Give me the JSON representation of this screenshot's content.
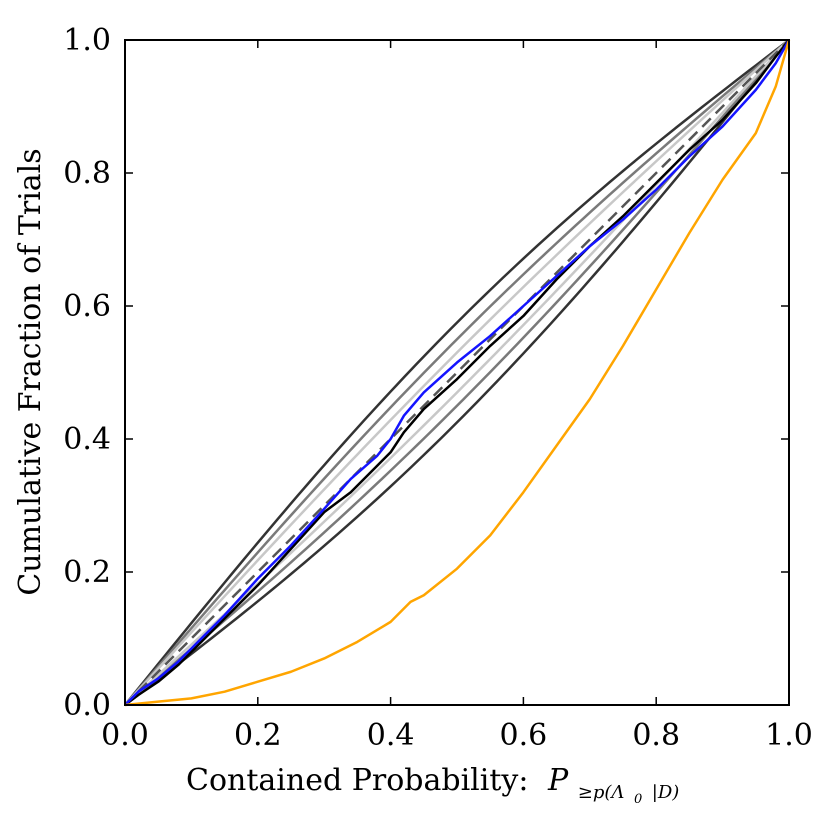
{
  "chart_data": {
    "type": "line",
    "title": "",
    "xlabel": "Contained Probability:",
    "xlabel_math": {
      "main": "P",
      "subscript": "≥p(Λ",
      "subsub": "0",
      "subscript_end": "|D)"
    },
    "ylabel": "Cumulative Fraction of Trials",
    "xlim": [
      0.0,
      1.0
    ],
    "ylim": [
      0.0,
      1.0
    ],
    "xticks": [
      "0.0",
      "0.2",
      "0.4",
      "0.6",
      "0.8",
      "1.0"
    ],
    "yticks": [
      "0.0",
      "0.2",
      "0.4",
      "0.6",
      "0.8",
      "1.0"
    ],
    "grid": false,
    "reference": {
      "name": "diagonal",
      "color": "#555555",
      "style": "dashed",
      "points": [
        [
          0,
          0
        ],
        [
          1,
          1
        ]
      ]
    },
    "bands": [
      {
        "name": "band-1sigma",
        "color": "#c8c8c8",
        "offset": 0.03
      },
      {
        "name": "band-2sigma",
        "color": "#7a7a7a",
        "offset": 0.05
      },
      {
        "name": "band-3sigma",
        "color": "#333333",
        "offset": 0.075
      }
    ],
    "series": [
      {
        "name": "black-trials",
        "color": "#000000",
        "x": [
          0,
          0.02,
          0.05,
          0.08,
          0.1,
          0.15,
          0.2,
          0.25,
          0.3,
          0.34,
          0.38,
          0.4,
          0.42,
          0.45,
          0.5,
          0.55,
          0.6,
          0.65,
          0.7,
          0.75,
          0.8,
          0.85,
          0.9,
          0.95,
          0.98,
          1.0
        ],
        "y": [
          0,
          0.015,
          0.035,
          0.06,
          0.08,
          0.13,
          0.18,
          0.235,
          0.29,
          0.32,
          0.36,
          0.38,
          0.41,
          0.445,
          0.49,
          0.54,
          0.585,
          0.64,
          0.69,
          0.735,
          0.785,
          0.835,
          0.88,
          0.935,
          0.975,
          1.0
        ]
      },
      {
        "name": "blue-trials",
        "color": "#1414ff",
        "x": [
          0,
          0.02,
          0.05,
          0.08,
          0.1,
          0.15,
          0.2,
          0.25,
          0.3,
          0.34,
          0.38,
          0.4,
          0.42,
          0.45,
          0.5,
          0.55,
          0.6,
          0.65,
          0.7,
          0.75,
          0.8,
          0.85,
          0.9,
          0.95,
          0.98,
          1.0
        ],
        "y": [
          0,
          0.02,
          0.04,
          0.065,
          0.085,
          0.135,
          0.19,
          0.24,
          0.295,
          0.34,
          0.375,
          0.4,
          0.435,
          0.47,
          0.515,
          0.555,
          0.6,
          0.645,
          0.69,
          0.73,
          0.775,
          0.825,
          0.87,
          0.925,
          0.965,
          1.0
        ]
      },
      {
        "name": "orange-trials",
        "color": "#ffa500",
        "x": [
          0,
          0.05,
          0.1,
          0.15,
          0.2,
          0.25,
          0.3,
          0.35,
          0.4,
          0.43,
          0.45,
          0.5,
          0.55,
          0.6,
          0.65,
          0.7,
          0.75,
          0.8,
          0.85,
          0.9,
          0.95,
          0.98,
          1.0
        ],
        "y": [
          0,
          0.005,
          0.01,
          0.02,
          0.035,
          0.05,
          0.07,
          0.095,
          0.125,
          0.155,
          0.165,
          0.205,
          0.255,
          0.32,
          0.39,
          0.46,
          0.54,
          0.625,
          0.71,
          0.79,
          0.86,
          0.93,
          1.0
        ]
      }
    ]
  }
}
